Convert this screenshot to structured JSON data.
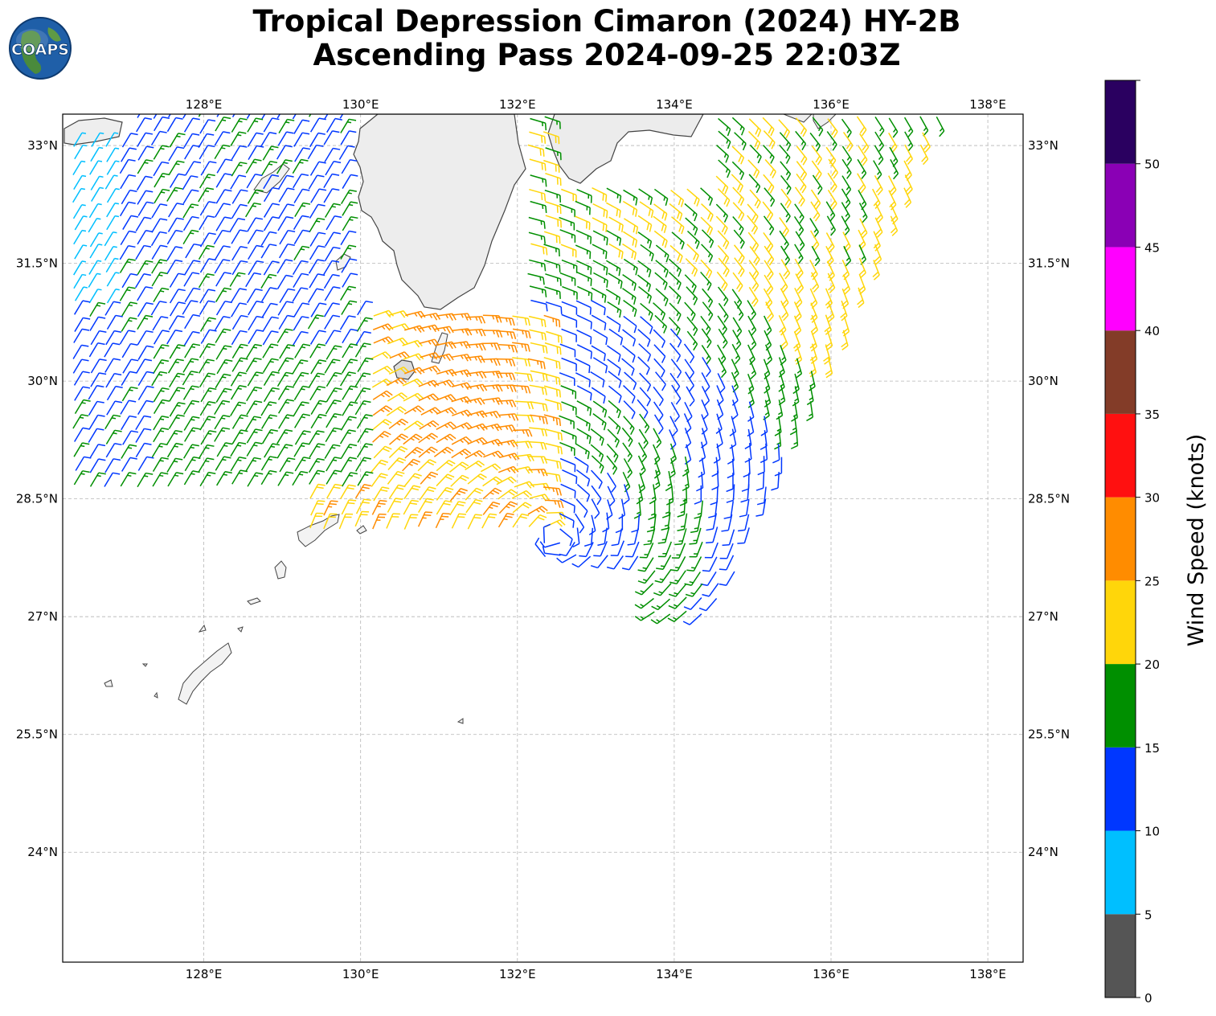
{
  "title": {
    "line1": "Tropical Depression Cimaron (2024) HY-2B",
    "line2": "Ascending Pass 2024-09-25 22:03Z"
  },
  "logo": {
    "text": "COAPS",
    "icon": "globe-logo-icon"
  },
  "map": {
    "projection": "PlateCarree",
    "lon_range": [
      126.2,
      138.45
    ],
    "lat_range": [
      22.6,
      33.4
    ],
    "lon_ticks": [
      "128°E",
      "130°E",
      "132°E",
      "134°E",
      "136°E",
      "138°E"
    ],
    "lat_ticks": [
      "33°N",
      "31.5°N",
      "30°N",
      "28.5°N",
      "27°N",
      "25.5°N",
      "24°N"
    ],
    "gridlines": true,
    "coastline_color": "#333333"
  },
  "colorbar": {
    "label": "Wind Speed (knots)",
    "tick_labels": [
      "0",
      "5",
      "10",
      "15",
      "20",
      "25",
      "30",
      "35",
      "40",
      "45",
      "50"
    ],
    "bins": [
      {
        "from": 0,
        "to": 5,
        "color": "#555555"
      },
      {
        "from": 5,
        "to": 10,
        "color": "#00bfff"
      },
      {
        "from": 10,
        "to": 15,
        "color": "#0037ff"
      },
      {
        "from": 15,
        "to": 20,
        "color": "#008f00"
      },
      {
        "from": 20,
        "to": 25,
        "color": "#ffd60a"
      },
      {
        "from": 25,
        "to": 30,
        "color": "#ff8c00"
      },
      {
        "from": 30,
        "to": 35,
        "color": "#ff1010"
      },
      {
        "from": 35,
        "to": 40,
        "color": "#833c28"
      },
      {
        "from": 40,
        "to": 45,
        "color": "#ff00ff"
      },
      {
        "from": 45,
        "to": 50,
        "color": "#8a00b5"
      },
      {
        "from": 50,
        "to": 55,
        "color": "#2a0060"
      }
    ]
  },
  "chart_data": {
    "type": "wind-barbs",
    "storm_center": {
      "lon": 132.5,
      "lat": 28.0
    },
    "swath_regions": [
      {
        "name": "west",
        "lon": [
          126.3,
          130.0
        ],
        "lat": [
          28.5,
          33.4
        ],
        "speed_kt_range": [
          8,
          19
        ]
      },
      {
        "name": "central",
        "lon": [
          129.3,
          132.6
        ],
        "lat": [
          28.0,
          31.0
        ],
        "speed_kt_range": [
          20,
          28
        ]
      },
      {
        "name": "east",
        "lon": [
          132.0,
          137.4
        ],
        "lat": [
          26.9,
          33.4
        ],
        "speed_kt_range": [
          11,
          24
        ]
      }
    ]
  }
}
